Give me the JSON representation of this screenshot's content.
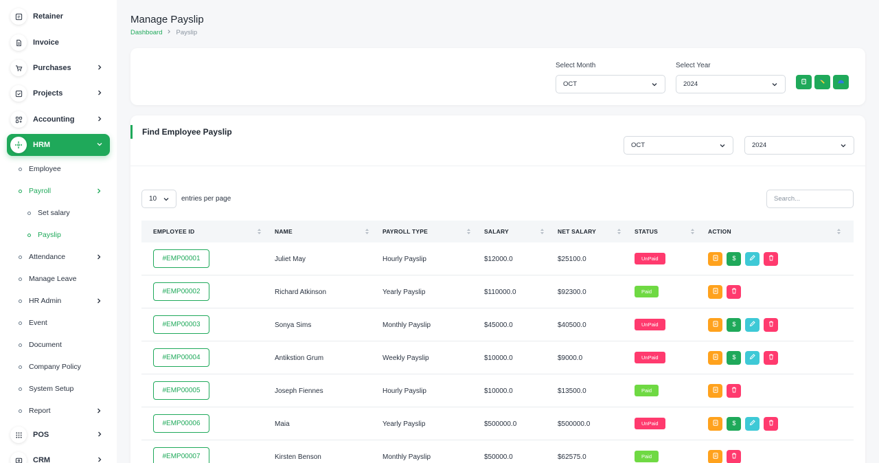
{
  "sidebar": {
    "items": [
      {
        "label": "Retainer",
        "icon": "retainer-icon"
      },
      {
        "label": "Invoice",
        "icon": "invoice-icon"
      },
      {
        "label": "Purchases",
        "icon": "cart-icon"
      },
      {
        "label": "Projects",
        "icon": "checkbox-icon"
      },
      {
        "label": "Accounting",
        "icon": "grid-icon"
      },
      {
        "label": "HRM",
        "icon": "hrm-icon"
      }
    ],
    "hrm_sub": [
      {
        "label": "Employee"
      },
      {
        "label": "Payroll"
      },
      {
        "label": "Set salary"
      },
      {
        "label": "Payslip"
      },
      {
        "label": "Attendance"
      },
      {
        "label": "Manage Leave"
      },
      {
        "label": "HR Admin"
      },
      {
        "label": "Event"
      },
      {
        "label": "Document"
      },
      {
        "label": "Company Policy"
      },
      {
        "label": "System Setup"
      },
      {
        "label": "Report"
      }
    ],
    "bottom": [
      {
        "label": "POS",
        "icon": "pos-icon"
      },
      {
        "label": "CRM",
        "icon": "crm-icon"
      }
    ]
  },
  "header": {
    "title": "Manage Payslip",
    "breadcrumb": [
      "Dashboard",
      "Payslip"
    ]
  },
  "generate": {
    "month_label": "Select Month",
    "month_value": "OCT",
    "year_label": "Select Year",
    "year_value": "2024",
    "buttons": [
      "generate-icon",
      "export-icon",
      "bulk-payment-icon"
    ]
  },
  "find": {
    "title": "Find Employee Payslip",
    "month_value": "OCT",
    "year_value": "2024",
    "entries_value": "10",
    "entries_text": "entries per page",
    "search_placeholder": "Search..."
  },
  "table": {
    "columns": [
      "EMPLOYEE ID",
      "NAME",
      "PAYROLL TYPE",
      "SALARY",
      "NET SALARY",
      "STATUS",
      "ACTION"
    ],
    "rows": [
      {
        "id": "#EMP00001",
        "name": "Juliet May",
        "type": "Hourly Payslip",
        "salary": "$12000.0",
        "net": "$25100.0",
        "status": "UnPaid"
      },
      {
        "id": "#EMP00002",
        "name": "Richard Atkinson",
        "type": "Yearly Payslip",
        "salary": "$110000.0",
        "net": "$92300.0",
        "status": "Paid"
      },
      {
        "id": "#EMP00003",
        "name": "Sonya Sims",
        "type": "Monthly Payslip",
        "salary": "$45000.0",
        "net": "$40500.0",
        "status": "UnPaid"
      },
      {
        "id": "#EMP00004",
        "name": "Antikstion Grum",
        "type": "Weekly Payslip",
        "salary": "$10000.0",
        "net": "$9000.0",
        "status": "UnPaid"
      },
      {
        "id": "#EMP00005",
        "name": "Joseph Fiennes",
        "type": "Hourly Payslip",
        "salary": "$10000.0",
        "net": "$13500.0",
        "status": "Paid"
      },
      {
        "id": "#EMP00006",
        "name": "Maia",
        "type": "Yearly Payslip",
        "salary": "$500000.0",
        "net": "$500000.0",
        "status": "UnPaid"
      },
      {
        "id": "#EMP00007",
        "name": "Kirsten Benson",
        "type": "Monthly Payslip",
        "salary": "$50000.0",
        "net": "$62575.0",
        "status": "Paid"
      }
    ]
  },
  "colors": {
    "accent": "#1fa95a",
    "unpaid": "#ff3a6e",
    "paid": "#6fd943",
    "action_view": "#ffa21d",
    "action_pay": "#1fa95a",
    "action_edit": "#3ec9d6",
    "action_delete": "#ff3a6e"
  }
}
